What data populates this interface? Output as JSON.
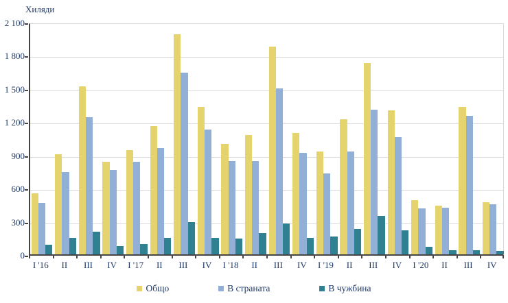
{
  "chart_data": {
    "type": "bar",
    "title": "",
    "unit_label": "Хиляди",
    "categories": [
      "I '16",
      "II",
      "III",
      "IV",
      "I '17",
      "II",
      "III",
      "IV",
      "I '18",
      "II",
      "III",
      "IV",
      "I '19",
      "II",
      "III",
      "IV",
      "I '20",
      "II",
      "III",
      "IV"
    ],
    "series": [
      {
        "name": "Общо",
        "color": "#E5D36D",
        "values": [
          550,
          905,
          1520,
          835,
          940,
          1160,
          1990,
          1330,
          1000,
          1080,
          1880,
          1095,
          930,
          1220,
          1730,
          1300,
          490,
          440,
          1330,
          470
        ]
      },
      {
        "name": "В страната",
        "color": "#92AFD7",
        "values": [
          465,
          745,
          1240,
          760,
          835,
          960,
          1640,
          1130,
          845,
          840,
          1500,
          915,
          730,
          930,
          1310,
          1060,
          415,
          420,
          1250,
          455
        ]
      },
      {
        "name": "В чужбина",
        "color": "#2F8090",
        "values": [
          85,
          150,
          205,
          75,
          95,
          150,
          290,
          150,
          140,
          190,
          280,
          150,
          160,
          230,
          350,
          220,
          70,
          35,
          40,
          30
        ]
      }
    ],
    "ylim": [
      0,
      2100
    ],
    "yticks": [
      2100,
      1800,
      1500,
      1200,
      900,
      600,
      300,
      0
    ],
    "grid": true,
    "legend_position": "bottom"
  },
  "colors": {
    "text": "#1F3864",
    "grid": "#D9D9D9",
    "axis": "#454545",
    "background": "#FFFFFF"
  }
}
